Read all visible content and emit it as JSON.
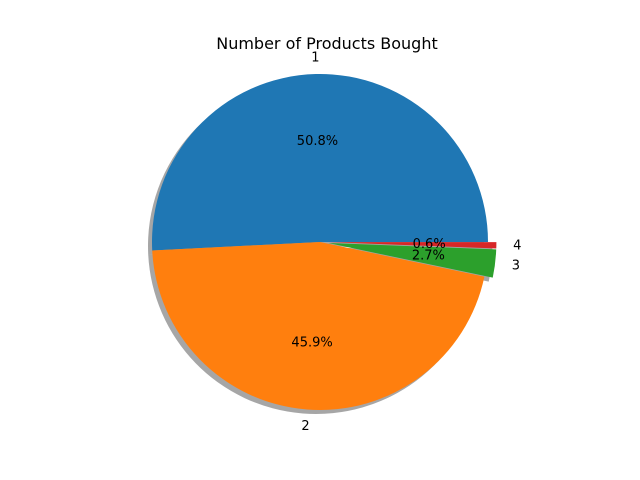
{
  "chart_data": {
    "type": "pie",
    "title": "Number of Products Bought",
    "categories": [
      "1",
      "2",
      "3",
      "4"
    ],
    "values": [
      50.8,
      45.9,
      2.7,
      0.6
    ],
    "value_labels": [
      "50.8%",
      "45.9%",
      "2.7%",
      "0.6%"
    ],
    "colors": [
      "#1f77b4",
      "#ff7f0e",
      "#2ca02c",
      "#d62728"
    ],
    "explode": [
      0,
      0,
      0.05,
      0.05
    ],
    "start_angle": 0,
    "direction": "counterclockwise",
    "shadow": true,
    "legend": "none"
  }
}
